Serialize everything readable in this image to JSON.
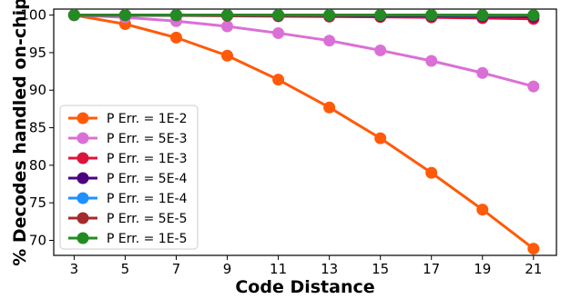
{
  "chart_data": {
    "type": "line",
    "title": "",
    "xlabel": "Code Distance",
    "ylabel": "% Decodes handled on-chip",
    "x": [
      3,
      5,
      7,
      9,
      11,
      13,
      15,
      17,
      19,
      21
    ],
    "xticks": [
      "3",
      "5",
      "7",
      "9",
      "11",
      "13",
      "15",
      "17",
      "19",
      "21"
    ],
    "yticks": [
      "70",
      "75",
      "80",
      "85",
      "90",
      "95",
      "100"
    ],
    "ylim": [
      68,
      100.8
    ],
    "grid": false,
    "legend_position": "lower-left",
    "series": [
      {
        "name": "P Err. = 1E-2",
        "color": "#ff5a0a",
        "values": [
          100,
          98.8,
          97.0,
          94.6,
          91.4,
          87.7,
          83.6,
          79.0,
          74.1,
          68.9
        ]
      },
      {
        "name": "P Err. = 5E-3",
        "color": "#da70d6",
        "values": [
          100,
          99.7,
          99.2,
          98.5,
          97.6,
          96.6,
          95.3,
          93.9,
          92.3,
          90.5
        ]
      },
      {
        "name": "P Err. = 1E-3",
        "color": "#dc143c",
        "values": [
          100,
          100,
          99.95,
          99.9,
          99.85,
          99.8,
          99.75,
          99.7,
          99.6,
          99.5
        ]
      },
      {
        "name": "P Err. = 5E-4",
        "color": "#4b0082",
        "values": [
          100,
          100,
          100,
          100,
          99.95,
          99.95,
          99.9,
          99.9,
          99.85,
          99.8
        ]
      },
      {
        "name": "P Err. = 1E-4",
        "color": "#1e90ff",
        "values": [
          100,
          100,
          100,
          100,
          100,
          100,
          100,
          100,
          99.95,
          99.95
        ]
      },
      {
        "name": "P Err. = 5E-5",
        "color": "#a52a2a",
        "values": [
          100,
          100,
          100,
          100,
          100,
          100,
          100,
          100,
          100,
          99.95
        ]
      },
      {
        "name": "P Err. = 1E-5",
        "color": "#228b22",
        "values": [
          100,
          100,
          100,
          100,
          100,
          100,
          100,
          100,
          100,
          100
        ]
      }
    ]
  }
}
